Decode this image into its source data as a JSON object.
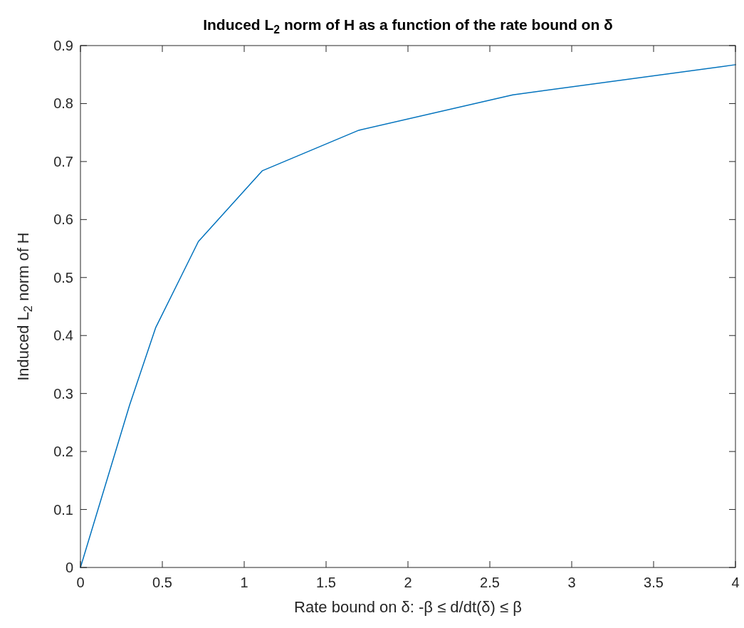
{
  "chart_data": {
    "type": "line",
    "title": "Induced L$_{2}$ norm of H as a function of the rate bound on δ",
    "xlabel": "Rate bound on δ: -β ≤ d/dt(δ) ≤ β",
    "ylabel": "Induced L$_{2}$ norm of H",
    "x": [
      0,
      0.3,
      0.46,
      0.72,
      1.11,
      1.7,
      2.64,
      4
    ],
    "series": [
      {
        "color": "#0072bd",
        "values": [
          0,
          0.28,
          0.414,
          0.562,
          0.684,
          0.754,
          0.815,
          0.867
        ]
      }
    ],
    "xlim": [
      0,
      4
    ],
    "xticks": [
      0,
      0.5,
      1,
      1.5,
      2,
      2.5,
      3,
      3.5,
      4
    ],
    "ylim": [
      0,
      0.9
    ],
    "yticks": [
      0,
      0.1,
      0.2,
      0.3,
      0.4,
      0.5,
      0.6,
      0.7,
      0.8,
      0.9
    ],
    "grid": false,
    "marker": "none",
    "line_style": "solid"
  }
}
